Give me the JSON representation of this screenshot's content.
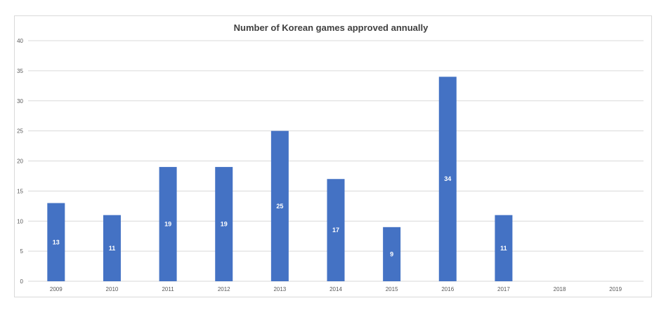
{
  "chart_data": {
    "type": "bar",
    "title": "Number of Korean games approved annually",
    "categories": [
      "2009",
      "2010",
      "2011",
      "2012",
      "2013",
      "2014",
      "2015",
      "2016",
      "2017",
      "2018",
      "2019"
    ],
    "values": [
      13,
      11,
      19,
      19,
      25,
      17,
      9,
      34,
      11,
      null,
      null
    ],
    "ylim": [
      0,
      40
    ],
    "yticks": [
      0,
      5,
      10,
      15,
      20,
      25,
      30,
      35,
      40
    ],
    "grid": true,
    "legend": "none",
    "bar_color": "#4472c4",
    "grid_color": "#d9d9d9",
    "data_label_color": "#ffffff"
  }
}
